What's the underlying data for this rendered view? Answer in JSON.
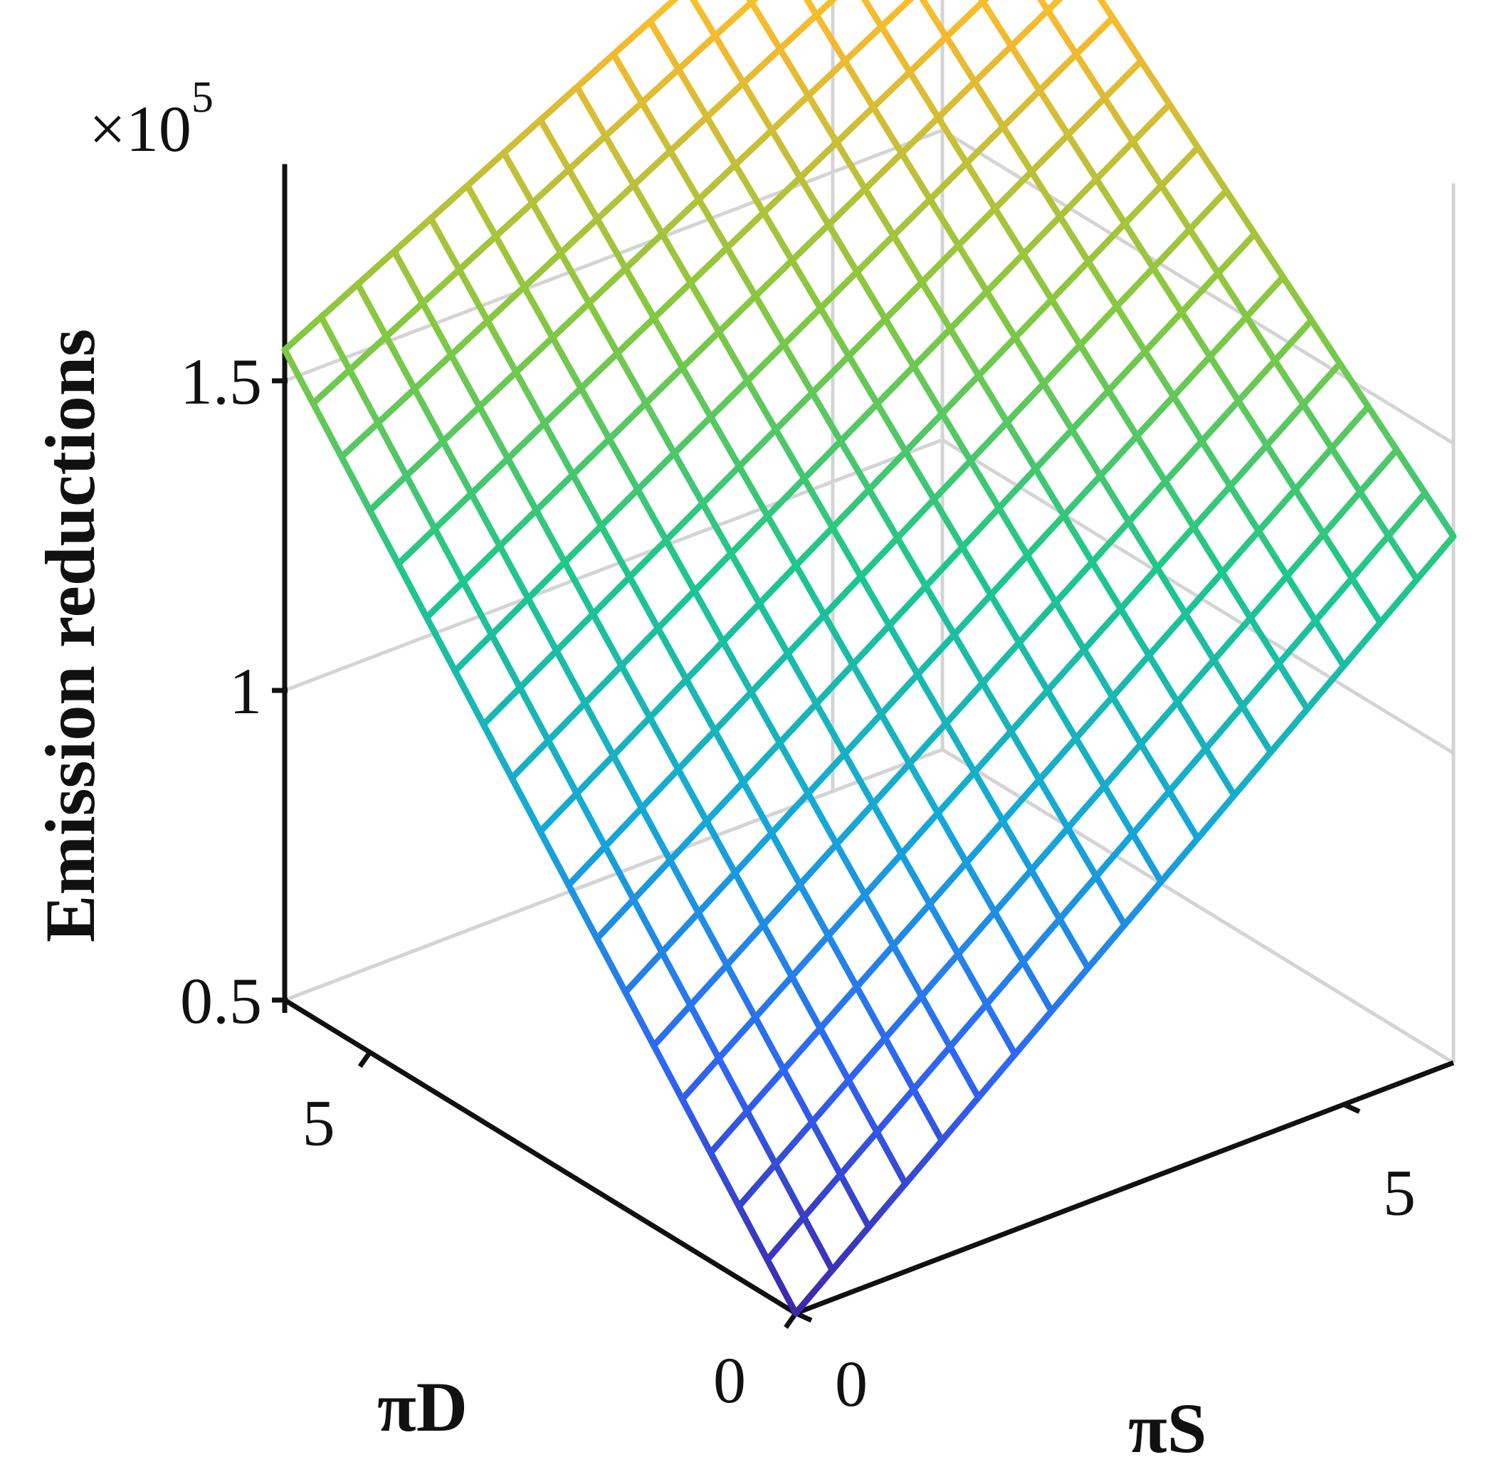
{
  "chart_data": {
    "type": "surface",
    "zlabel": "Emission reductions",
    "xlabel": "πS",
    "ylabel": "πD",
    "z_multiplier": "×10",
    "z_multiplier_exponent": "5",
    "x_ticks": [
      "0",
      "5"
    ],
    "y_ticks": [
      "0",
      "5"
    ],
    "z_ticks": [
      "0.5",
      "1",
      "1.5"
    ],
    "x_range": [
      0,
      6
    ],
    "y_range": [
      0,
      6
    ],
    "z_range": [
      0.5,
      1.6
    ],
    "grid_size": 18,
    "surface_corners": {
      "x0_y0": 0.0,
      "x6_y0": 0.85,
      "x0_y6": 1.05,
      "x6_y6": 1.6
    },
    "grid": true,
    "colormap": "parula",
    "colors": {
      "axis": "#111111",
      "gridline": "#d4d4d4",
      "colormap_stops": [
        "#3e26a8",
        "#2f64f5",
        "#14a8d8",
        "#1dc78c",
        "#85c840",
        "#f4b92f",
        "#f9e819"
      ]
    }
  }
}
